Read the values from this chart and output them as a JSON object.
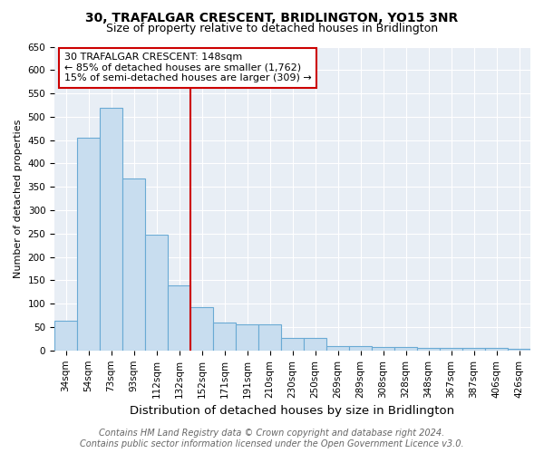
{
  "title": "30, TRAFALGAR CRESCENT, BRIDLINGTON, YO15 3NR",
  "subtitle": "Size of property relative to detached houses in Bridlington",
  "xlabel": "Distribution of detached houses by size in Bridlington",
  "ylabel": "Number of detached properties",
  "categories": [
    "34sqm",
    "54sqm",
    "73sqm",
    "93sqm",
    "112sqm",
    "132sqm",
    "152sqm",
    "171sqm",
    "191sqm",
    "210sqm",
    "230sqm",
    "250sqm",
    "269sqm",
    "289sqm",
    "308sqm",
    "328sqm",
    "348sqm",
    "367sqm",
    "387sqm",
    "406sqm",
    "426sqm"
  ],
  "values": [
    63,
    455,
    520,
    368,
    248,
    140,
    93,
    60,
    56,
    56,
    26,
    26,
    10,
    10,
    7,
    7,
    5,
    5,
    5,
    5,
    4
  ],
  "bar_color": "#c8ddef",
  "bar_edge_color": "#6aaad4",
  "ylim": [
    0,
    650
  ],
  "yticks": [
    0,
    50,
    100,
    150,
    200,
    250,
    300,
    350,
    400,
    450,
    500,
    550,
    600,
    650
  ],
  "annotation_text_line1": "30 TRAFALGAR CRESCENT: 148sqm",
  "annotation_text_line2": "← 85% of detached houses are smaller (1,762)",
  "annotation_text_line3": "15% of semi-detached houses are larger (309) →",
  "annotation_box_facecolor": "#ffffff",
  "annotation_box_edgecolor": "#cc0000",
  "red_line_color": "#cc0000",
  "footer_line1": "Contains HM Land Registry data © Crown copyright and database right 2024.",
  "footer_line2": "Contains public sector information licensed under the Open Government Licence v3.0.",
  "background_color": "#ffffff",
  "plot_background_color": "#e8eef5",
  "grid_color": "#ffffff",
  "title_fontsize": 10,
  "subtitle_fontsize": 9,
  "xlabel_fontsize": 9.5,
  "ylabel_fontsize": 8,
  "tick_fontsize": 7.5,
  "footer_fontsize": 7,
  "annotation_fontsize": 8
}
